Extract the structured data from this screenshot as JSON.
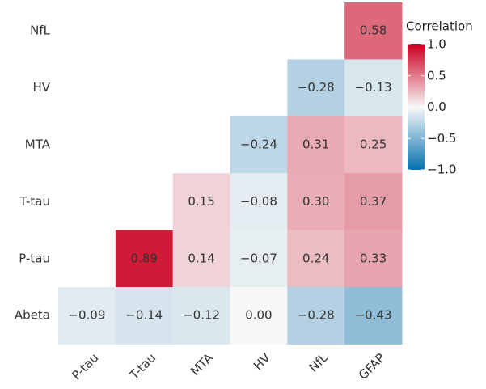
{
  "chart_data": {
    "type": "heatmap",
    "x_categories": [
      "P-tau",
      "T-tau",
      "MTA",
      "HV",
      "NfL",
      "GFAP"
    ],
    "y_categories": [
      "NfL",
      "HV",
      "MTA",
      "T-tau",
      "P-tau",
      "Abeta"
    ],
    "values": [
      [
        null,
        null,
        null,
        null,
        null,
        0.58
      ],
      [
        null,
        null,
        null,
        null,
        -0.28,
        -0.13
      ],
      [
        null,
        null,
        null,
        -0.24,
        0.31,
        0.25
      ],
      [
        null,
        null,
        0.15,
        -0.08,
        0.3,
        0.37
      ],
      [
        null,
        0.89,
        0.14,
        -0.07,
        0.24,
        0.33
      ],
      [
        -0.09,
        -0.14,
        -0.12,
        0.0,
        -0.28,
        -0.43
      ]
    ],
    "value_labels": [
      [
        null,
        null,
        null,
        null,
        null,
        "0.58"
      ],
      [
        null,
        null,
        null,
        null,
        "−0.28",
        "−0.13"
      ],
      [
        null,
        null,
        null,
        "−0.24",
        "0.31",
        "0.25"
      ],
      [
        null,
        null,
        "0.15",
        "−0.08",
        "0.30",
        "0.37"
      ],
      [
        null,
        "0.89",
        "0.14",
        "−0.07",
        "0.24",
        "0.33"
      ],
      [
        "−0.09",
        "−0.14",
        "−0.12",
        "0.00",
        "−0.28",
        "−0.43"
      ]
    ],
    "colorbar": {
      "title": "Correlation",
      "lim": [
        -1,
        1
      ],
      "ticks": [
        {
          "value": 1,
          "label": "1.0"
        },
        {
          "value": 0.5,
          "label": "0.5"
        },
        {
          "value": 0,
          "label": "0.0"
        },
        {
          "value": -0.5,
          "label": "−0.5"
        },
        {
          "value": -1,
          "label": "−1.0"
        }
      ],
      "colors": {
        "low": "#0571b0",
        "mid": "#f7f7f7",
        "high": "#ca0020"
      }
    }
  }
}
